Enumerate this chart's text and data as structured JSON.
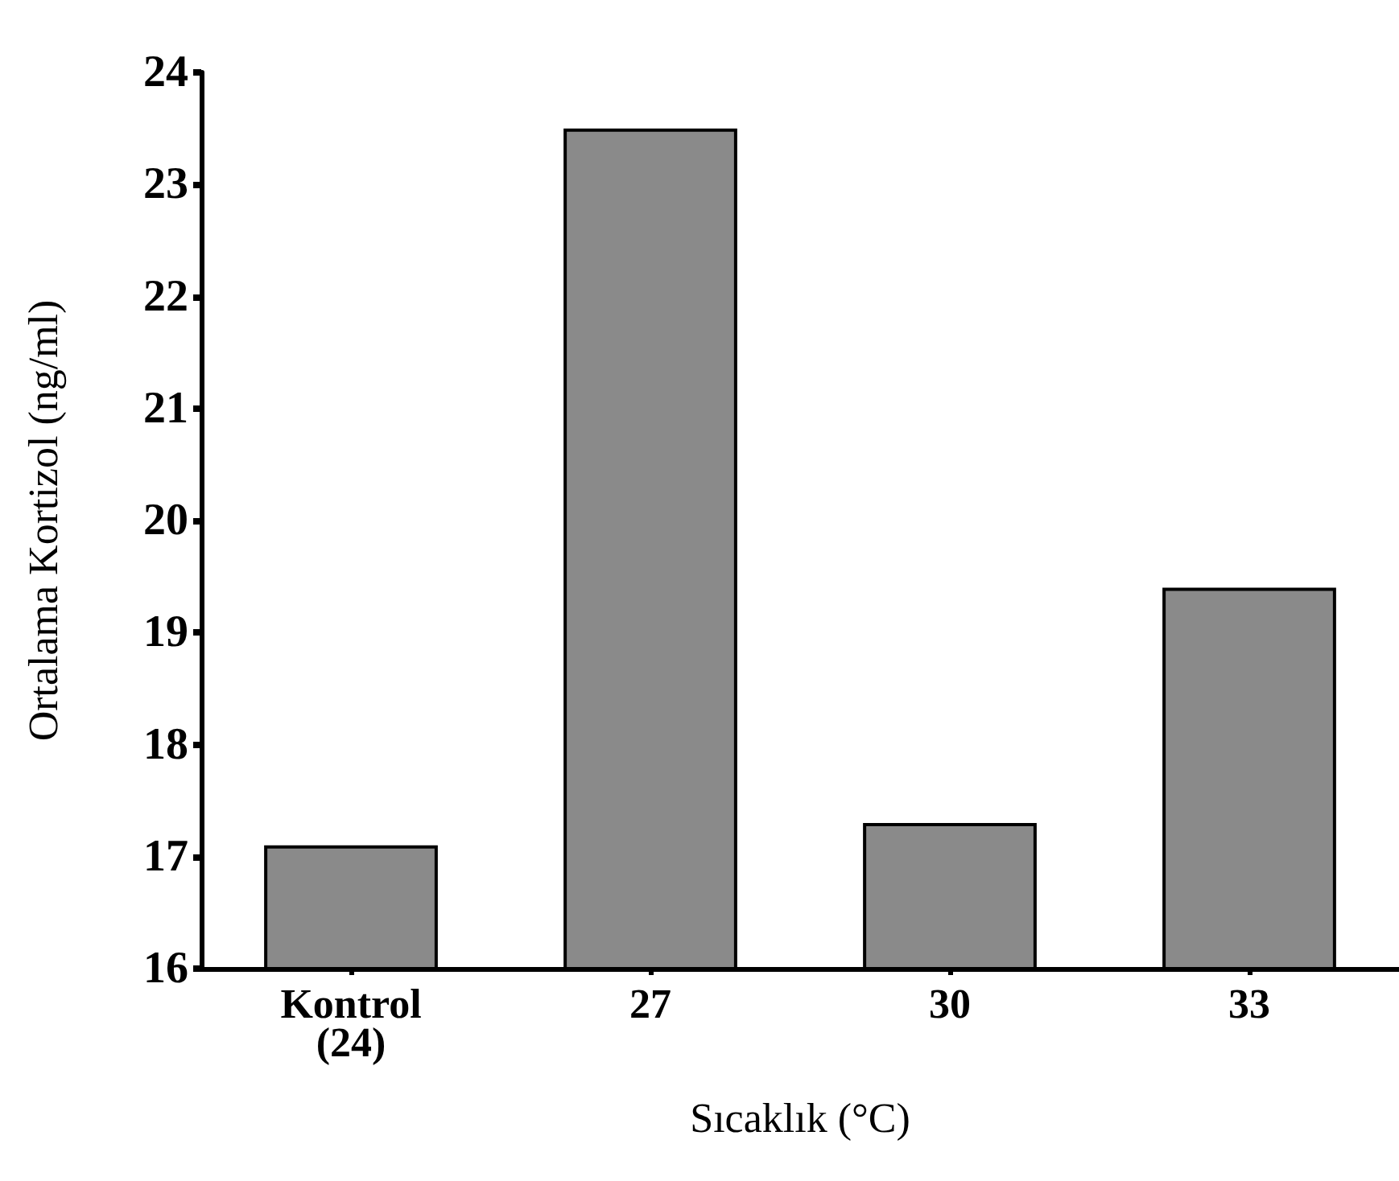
{
  "chart_data": {
    "type": "bar",
    "xlabel": "Sıcaklık (°C)",
    "ylabel": "Ortalama Kortizol (ng/ml)",
    "categories": [
      "Kontrol\n(24)",
      "27",
      "30",
      "33"
    ],
    "values": [
      17.1,
      23.5,
      17.3,
      19.4
    ],
    "color": "#8a8a8a",
    "ylim": [
      16,
      24
    ],
    "yticks": [
      16,
      17,
      18,
      19,
      20,
      21,
      22,
      23,
      24
    ]
  }
}
